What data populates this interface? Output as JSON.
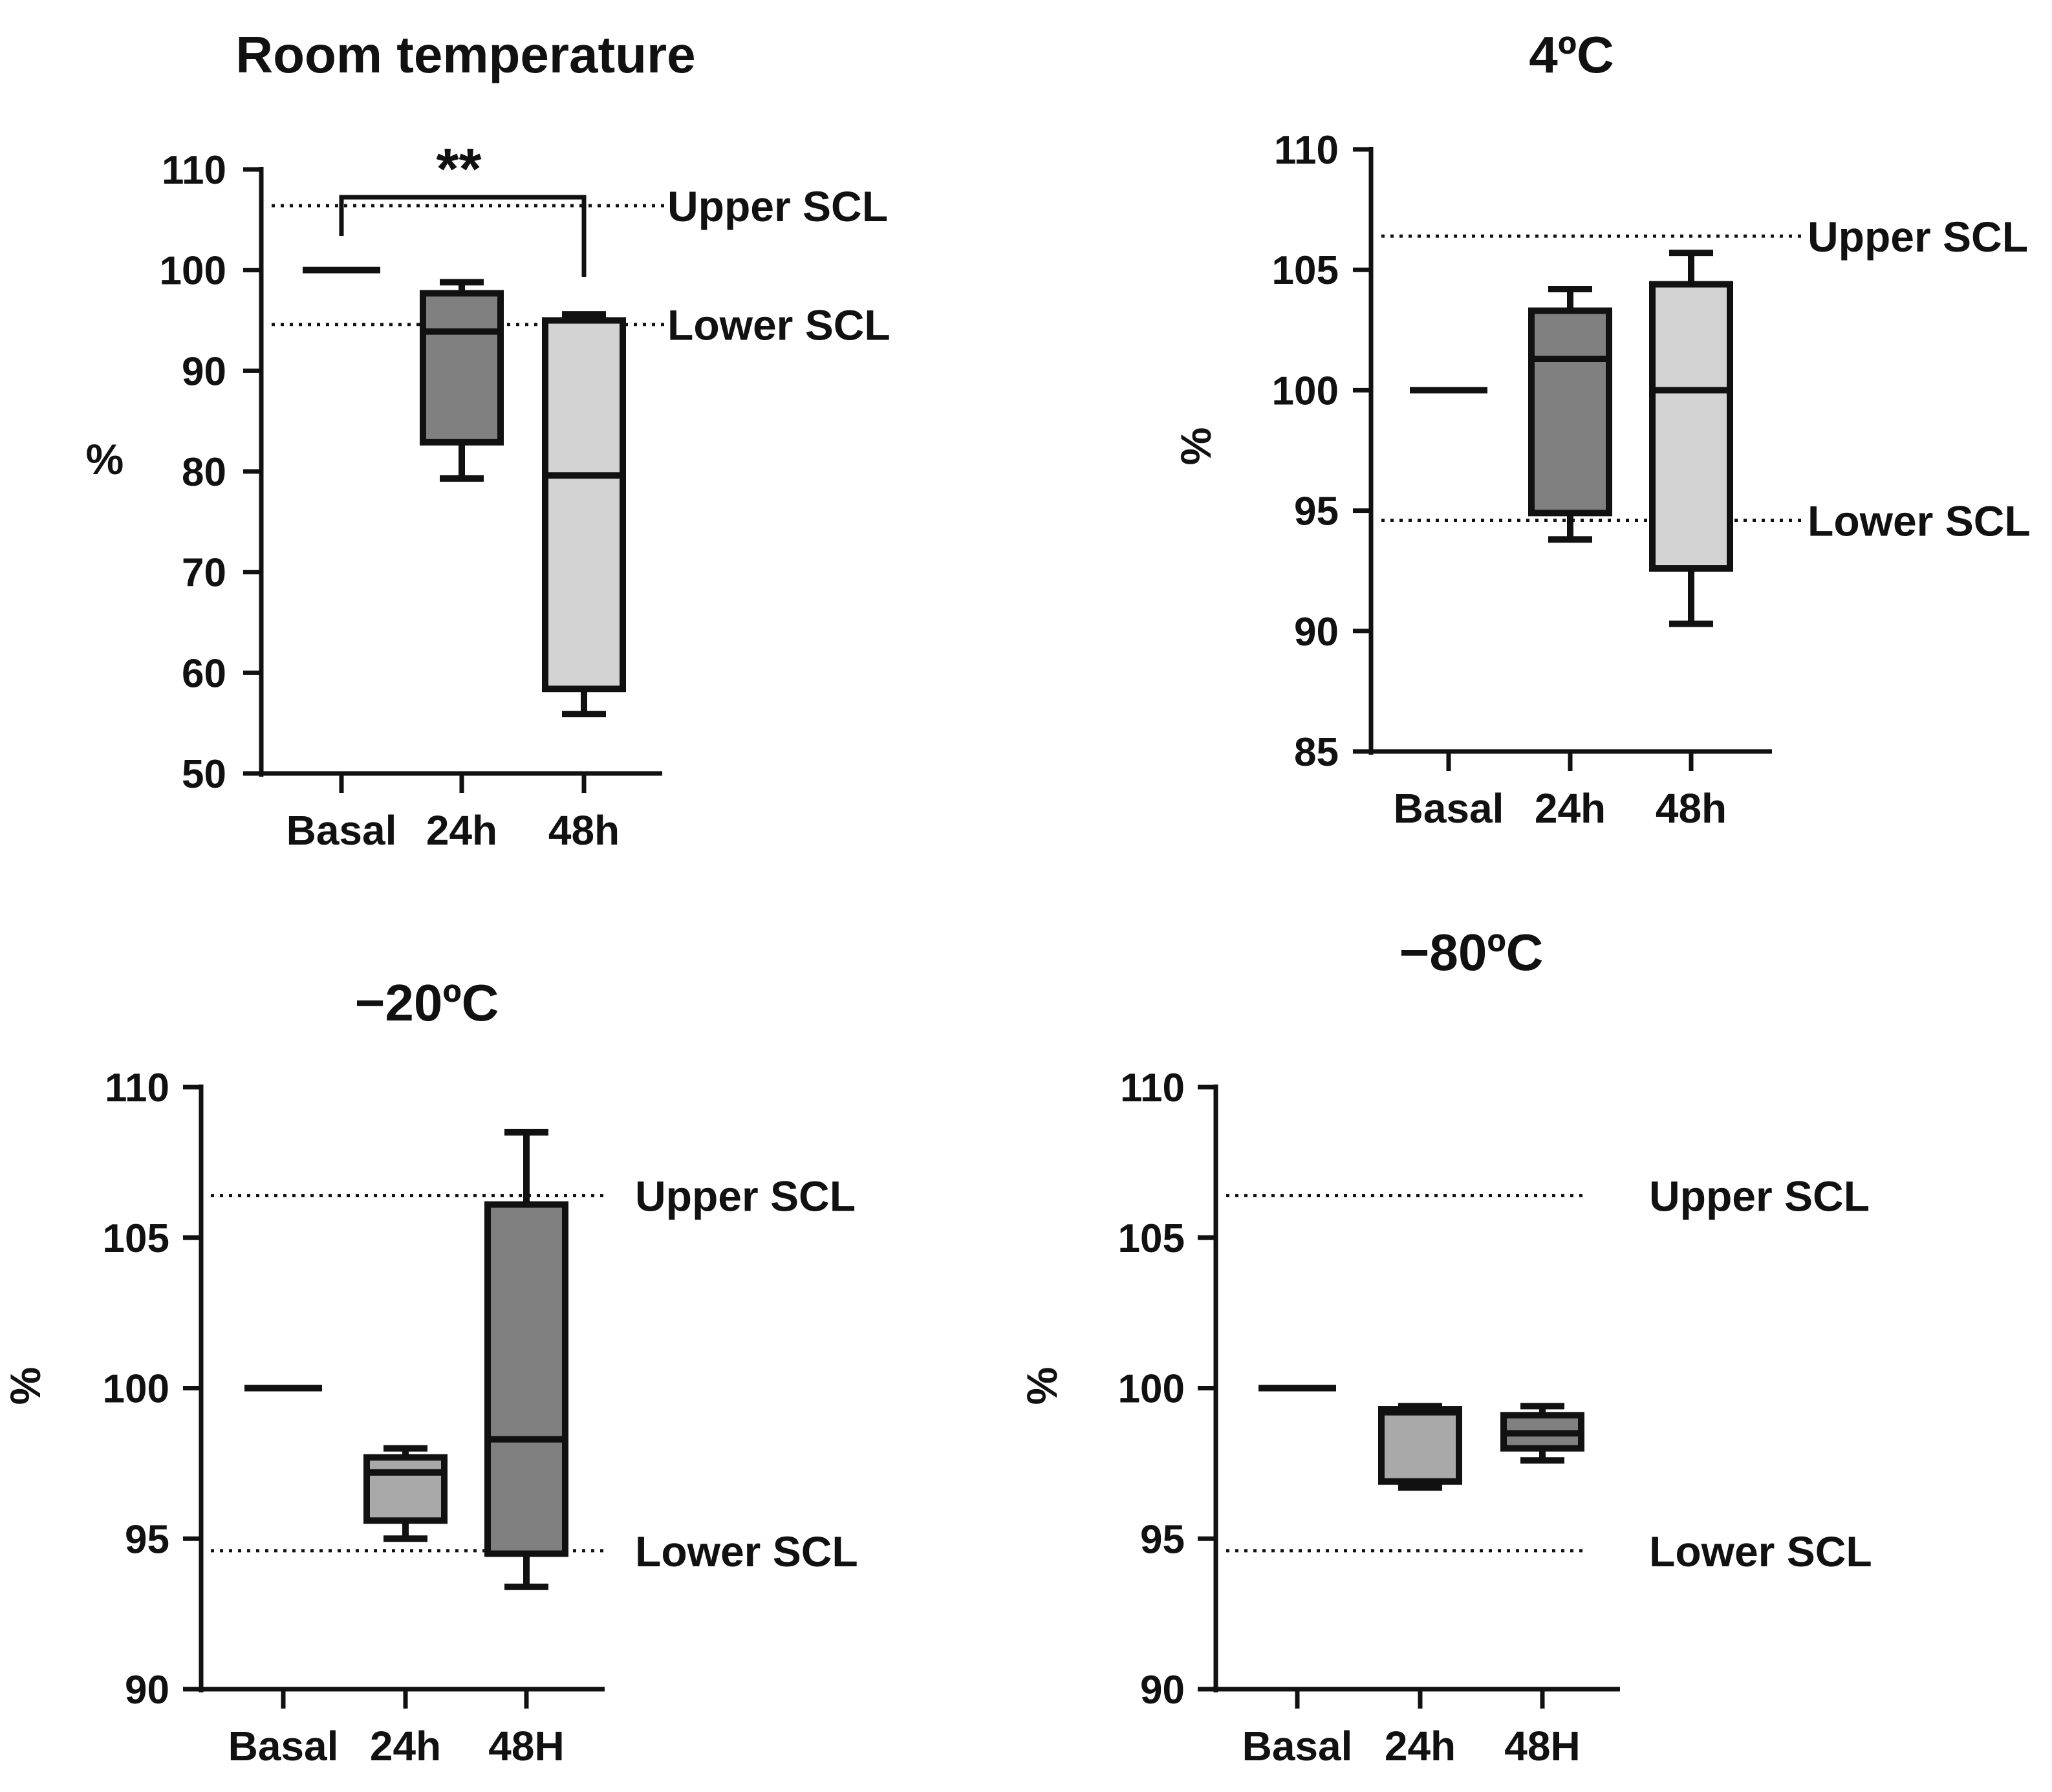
{
  "chart_data": [
    {
      "type": "box",
      "title": "Room temperature",
      "ylabel": "%",
      "ylim": [
        50,
        110
      ],
      "yticks": [
        50,
        60,
        70,
        80,
        90,
        100,
        110
      ],
      "categories": [
        "Basal",
        "24h",
        "48h"
      ],
      "reference_lines": [
        {
          "label": "Upper SCL",
          "value": 106.4
        },
        {
          "label": "Lower SCL",
          "value": 94.6
        }
      ],
      "significance": {
        "from": "Basal",
        "to": "48h",
        "label": "**"
      },
      "boxes": [
        {
          "category": "Basal",
          "min": 100,
          "q1": 100,
          "median": 100,
          "q3": 100,
          "max": 100,
          "fill": "#000000"
        },
        {
          "category": "24h",
          "min": 79.3,
          "q1": 82.9,
          "median": 93.9,
          "q3": 97.7,
          "max": 98.8,
          "fill": "#808080"
        },
        {
          "category": "48h",
          "min": 55.9,
          "q1": 58.4,
          "median": 79.6,
          "q3": 95.0,
          "max": 95.6,
          "fill": "#d3d3d3"
        }
      ]
    },
    {
      "type": "box",
      "title": "4ºC",
      "ylabel": "%",
      "ylim": [
        85,
        110
      ],
      "yticks": [
        85,
        90,
        95,
        100,
        105,
        110
      ],
      "categories": [
        "Basal",
        "24h",
        "48h"
      ],
      "reference_lines": [
        {
          "label": "Upper SCL",
          "value": 106.4
        },
        {
          "label": "Lower SCL",
          "value": 94.6
        }
      ],
      "boxes": [
        {
          "category": "Basal",
          "min": 100,
          "q1": 100,
          "median": 100,
          "q3": 100,
          "max": 100,
          "fill": "#000000"
        },
        {
          "category": "24h",
          "min": 93.8,
          "q1": 94.9,
          "median": 101.3,
          "q3": 103.3,
          "max": 104.2,
          "fill": "#808080"
        },
        {
          "category": "48h",
          "min": 90.3,
          "q1": 92.6,
          "median": 100.0,
          "q3": 104.4,
          "max": 105.7,
          "fill": "#d3d3d3"
        }
      ]
    },
    {
      "type": "box",
      "title": "−20ºC",
      "ylabel": "%",
      "ylim": [
        90,
        110
      ],
      "yticks": [
        90,
        95,
        100,
        105,
        110
      ],
      "categories": [
        "Basal",
        "24h",
        "48H"
      ],
      "reference_lines": [
        {
          "label": "Upper SCL",
          "value": 106.4
        },
        {
          "label": "Lower SCL",
          "value": 94.6
        }
      ],
      "boxes": [
        {
          "category": "Basal",
          "min": 100,
          "q1": 100,
          "median": 100,
          "q3": 100,
          "max": 100,
          "fill": "#000000"
        },
        {
          "category": "24h",
          "min": 95.0,
          "q1": 95.6,
          "median": 97.2,
          "q3": 97.7,
          "max": 98.0,
          "fill": "#a9a9a9"
        },
        {
          "category": "48H",
          "min": 93.4,
          "q1": 94.5,
          "median": 98.3,
          "q3": 106.1,
          "max": 108.5,
          "fill": "#808080"
        }
      ]
    },
    {
      "type": "box",
      "title": "−80ºC",
      "ylabel": "%",
      "ylim": [
        90,
        110
      ],
      "yticks": [
        90,
        95,
        100,
        105,
        110
      ],
      "categories": [
        "Basal",
        "24h",
        "48H"
      ],
      "reference_lines": [
        {
          "label": "Upper SCL",
          "value": 106.4
        },
        {
          "label": "Lower SCL",
          "value": 94.6
        }
      ],
      "boxes": [
        {
          "category": "Basal",
          "min": 100,
          "q1": 100,
          "median": 100,
          "q3": 100,
          "max": 100,
          "fill": "#000000"
        },
        {
          "category": "24h",
          "min": 96.7,
          "q1": 96.9,
          "median": 99.2,
          "q3": 99.3,
          "max": 99.4,
          "fill": "#a9a9a9"
        },
        {
          "category": "48H",
          "min": 97.6,
          "q1": 98.0,
          "median": 98.5,
          "q3": 99.1,
          "max": 99.4,
          "fill": "#808080"
        }
      ]
    }
  ]
}
